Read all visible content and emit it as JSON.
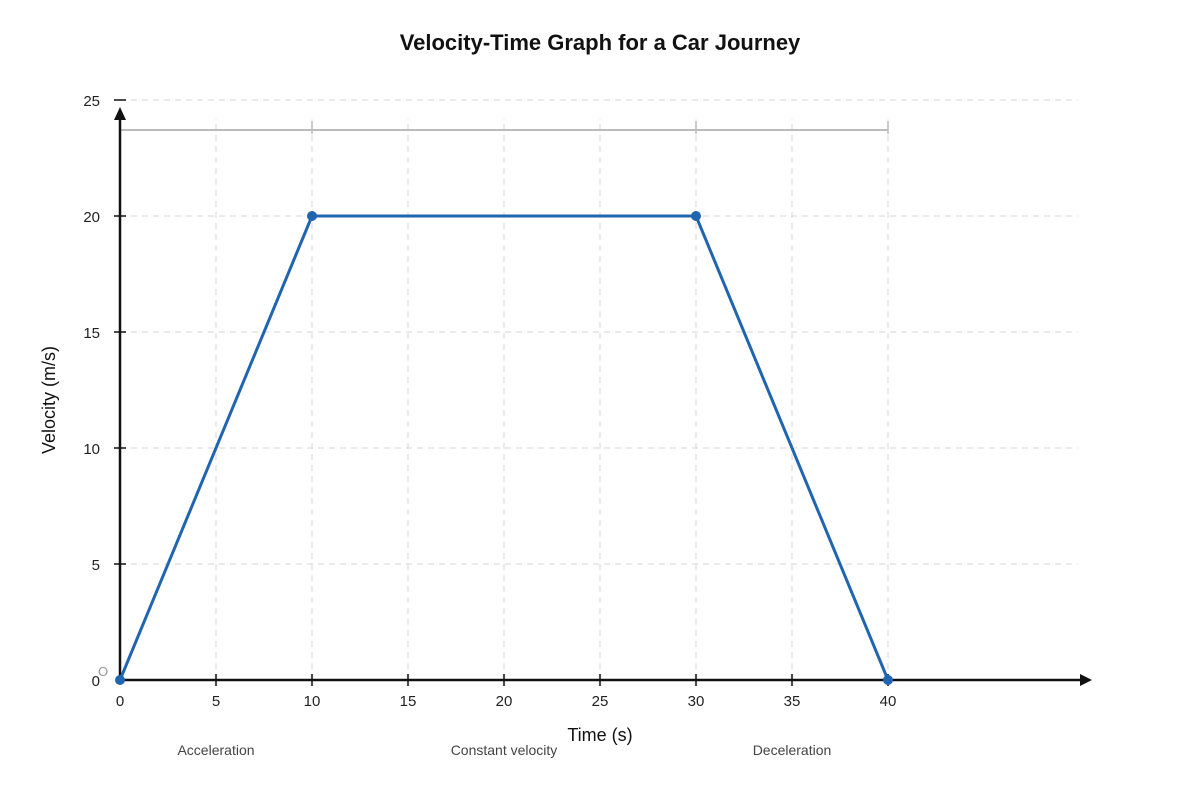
{
  "chart_data": {
    "type": "line",
    "title": "Velocity-Time Graph for a Car Journey",
    "xlabel": "Time (s)",
    "ylabel": "Velocity (m/s)",
    "xlim": [
      0,
      50
    ],
    "ylim": [
      0,
      25
    ],
    "x_ticks": [
      0,
      5,
      10,
      15,
      20,
      25,
      30,
      35,
      40
    ],
    "y_ticks": [
      0,
      5,
      10,
      15,
      20,
      25
    ],
    "grid": true,
    "origin_label": "O",
    "series": [
      {
        "points": [
          [
            0,
            0
          ],
          [
            10,
            20
          ],
          [
            30,
            20
          ],
          [
            40,
            0
          ]
        ]
      }
    ],
    "phases": [
      {
        "label": "Acceleration",
        "start": 0,
        "end": 10
      },
      {
        "label": "Constant velocity",
        "start": 10,
        "end": 30
      },
      {
        "label": "Deceleration",
        "start": 30,
        "end": 40
      }
    ],
    "colors": {
      "line": "#1f65b0",
      "axis": "#111111",
      "grid": "#dddddd",
      "bracket": "#bbbbbb"
    }
  }
}
